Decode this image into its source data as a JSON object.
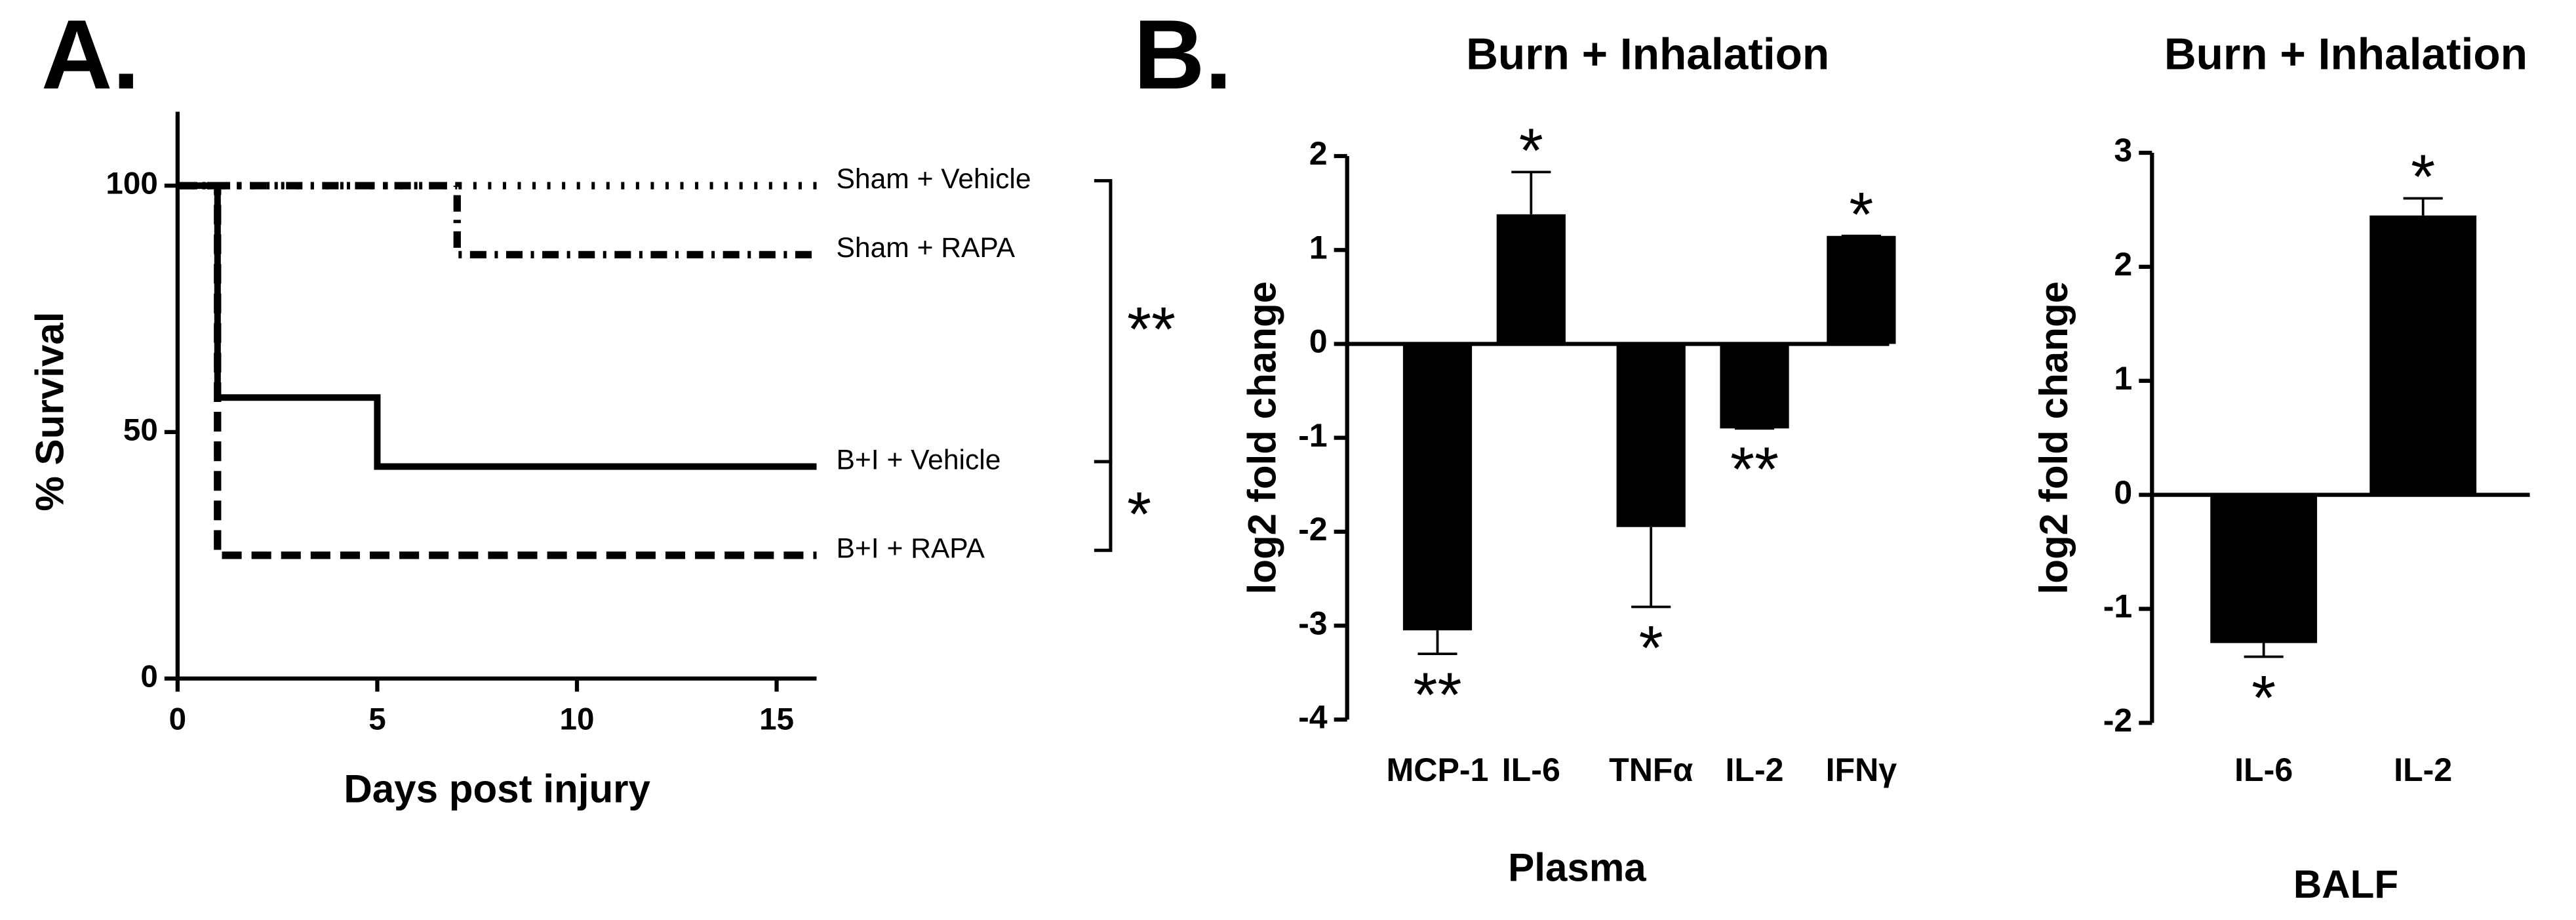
{
  "chart_data": [
    {
      "type": "survival",
      "panel_label": "A.",
      "xlabel": "Days post injury",
      "ylabel": "% Survival",
      "xlim": [
        0,
        16
      ],
      "xticks": [
        0,
        5,
        10,
        15
      ],
      "ylim": [
        0,
        115
      ],
      "yticks": [
        0,
        50,
        100
      ],
      "series": [
        {
          "name": "Sham + Vehicle",
          "color": "#000000",
          "style": "dotted",
          "x": [
            0,
            16
          ],
          "values": [
            100,
            100
          ]
        },
        {
          "name": "Sham + RAPA",
          "color": "#000000",
          "style": "dashdot",
          "x": [
            0,
            7,
            16
          ],
          "values": [
            100,
            86,
            86
          ]
        },
        {
          "name": "B+I + Vehicle",
          "color": "#000000",
          "style": "solid",
          "x": [
            0,
            1,
            5,
            16
          ],
          "values": [
            100,
            57,
            43,
            43
          ]
        },
        {
          "name": "B+I + RAPA",
          "color": "#000000",
          "style": "dashed",
          "x": [
            0,
            1,
            16
          ],
          "values": [
            100,
            25,
            25
          ]
        }
      ],
      "comparisons": [
        "**",
        "*"
      ]
    },
    {
      "type": "bar",
      "panel_label": "B.",
      "title": "Burn + Inhalation",
      "xlabel": "Plasma",
      "ylabel": "log2 fold change",
      "categories": [
        "MCP-1",
        "IL-6",
        "TNFα",
        "IL-2",
        "IFNγ"
      ],
      "values": [
        -3.05,
        1.38,
        -1.95,
        -0.9,
        1.15
      ],
      "errors": [
        0.25,
        0.45,
        0.85,
        0,
        0
      ],
      "significance": [
        "**",
        "*",
        "*",
        "**",
        "*"
      ],
      "color": "#000000",
      "ylim": [
        -4,
        2
      ],
      "yticks": [
        -4,
        -3,
        -2,
        -1,
        0,
        1,
        2
      ]
    },
    {
      "type": "bar",
      "title": "Burn + Inhalation",
      "xlabel": "BALF",
      "ylabel": "log2 fold change",
      "categories": [
        "IL-6",
        "IL-2"
      ],
      "values": [
        -1.3,
        2.45
      ],
      "errors": [
        0.12,
        0.15
      ],
      "significance": [
        "*",
        "*"
      ],
      "color": "#000000",
      "ylim": [
        -2,
        3
      ],
      "yticks": [
        -2,
        -1,
        0,
        1,
        2,
        3
      ]
    }
  ]
}
